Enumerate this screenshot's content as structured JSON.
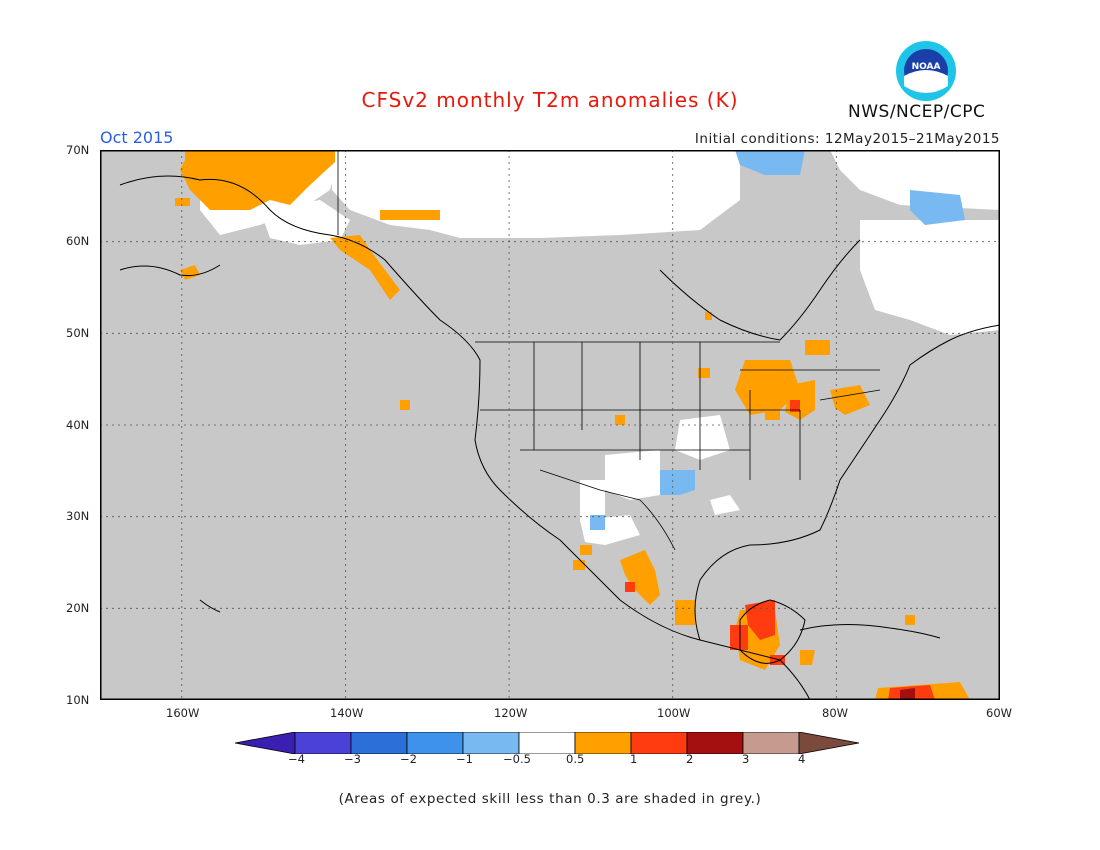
{
  "header": {
    "title": "CFSv2 monthly T2m anomalies (K)",
    "period": "Oct 2015",
    "initial_conditions": "Initial conditions: 12May2015–21May2015",
    "agency": "NWS/NCEP/CPC",
    "logo_text": "NOAA"
  },
  "axes": {
    "lat_labels": [
      "70N",
      "60N",
      "50N",
      "40N",
      "30N",
      "20N",
      "10N"
    ],
    "lon_labels": [
      "160W",
      "140W",
      "120W",
      "100W",
      "80W",
      "60W"
    ]
  },
  "legend": {
    "tick_labels": [
      "−4",
      "−3",
      "−2",
      "−1",
      "−0.5",
      "0.5",
      "1",
      "2",
      "3",
      "4"
    ],
    "colors": [
      "#3a1fb0",
      "#4b41d8",
      "#2c6fd8",
      "#3e92ea",
      "#78b9f2",
      "#ffffff",
      "#ff9f00",
      "#ff3b10",
      "#a40f0f",
      "#c49b8e",
      "#7b4a3c"
    ]
  },
  "map_colors": {
    "low_skill_grey": "#c8c8c8",
    "neutral_white": "#ffffff",
    "warm_0_5_1": "#ff9f00",
    "warm_1_2": "#ff3b10",
    "warm_2_3": "#a40f0f",
    "cool_0_5_1": "#78b9f2"
  },
  "footnote": "(Areas of expected skill less than 0.3 are shaded in grey.)"
}
